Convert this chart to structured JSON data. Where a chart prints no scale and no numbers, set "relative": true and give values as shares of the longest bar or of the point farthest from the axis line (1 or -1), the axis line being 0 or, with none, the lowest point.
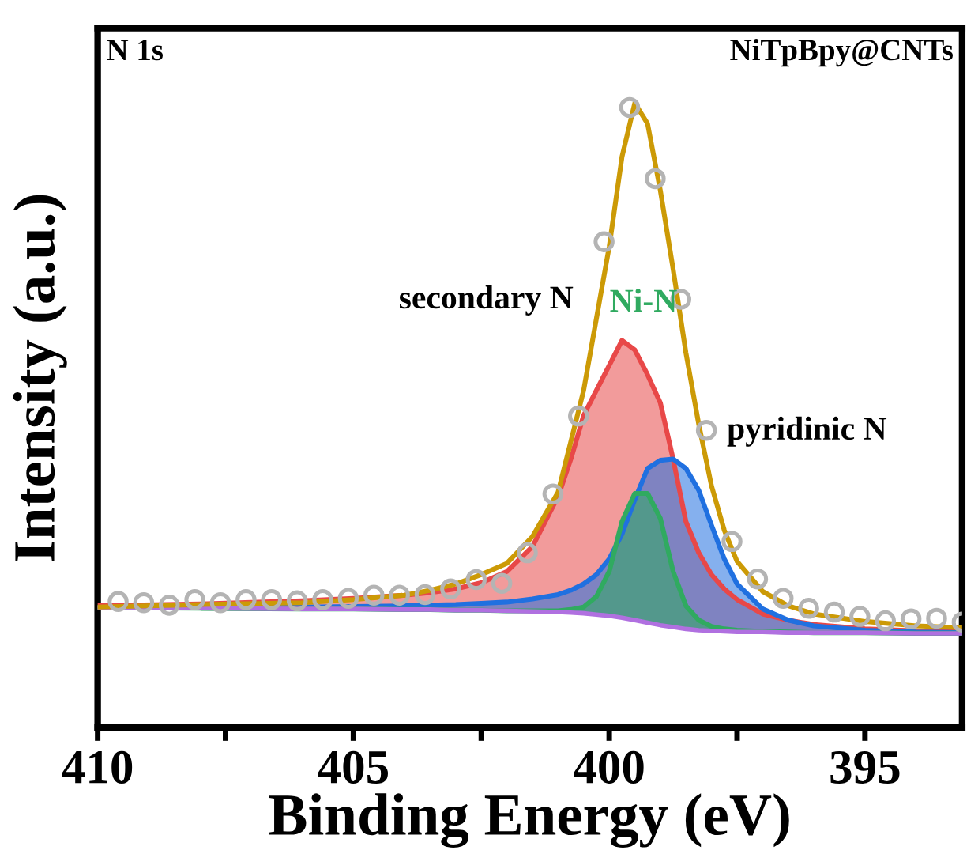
{
  "chart_data": {
    "type": "line",
    "relative": true,
    "xlabel": "Binding Energy (eV)",
    "ylabel": "Intensity (a.u.)",
    "annotations": [
      "N 1s",
      "NiTpBpy@CNTs"
    ],
    "xlim": [
      410,
      393.1
    ],
    "xticks": [
      410,
      {
        "value": 407.5,
        "label": null
      },
      405,
      {
        "value": 402.5,
        "label": null
      },
      400,
      {
        "value": 397.5,
        "label": null
      },
      395
    ],
    "grid": false,
    "legend": false,
    "x": [
      410,
      408,
      406,
      405,
      404,
      403.5,
      403,
      402.5,
      402,
      401.5,
      401,
      400.75,
      400.5,
      400.25,
      400,
      399.75,
      399.5,
      399.25,
      399,
      398.75,
      398.5,
      398.25,
      398,
      397.75,
      397.5,
      397,
      396.5,
      396,
      395,
      394,
      393.1
    ],
    "series": [
      {
        "type": "scatter",
        "marker": "circle",
        "color": "#b4b4b4",
        "x": [
          409.6,
          409.1,
          408.6,
          408.1,
          407.6,
          407.1,
          406.6,
          406.1,
          405.6,
          405.1,
          404.6,
          404.1,
          403.6,
          403.1,
          402.6,
          402.1,
          401.6,
          401.1,
          400.6,
          400.1,
          399.6,
          399.1,
          398.6,
          398.1,
          397.6,
          397.1,
          396.6,
          396.1,
          395.6,
          395.1,
          394.6,
          394.1,
          393.6,
          393.1
        ],
        "values": [
          0.202,
          0.2,
          0.196,
          0.205,
          0.2,
          0.205,
          0.205,
          0.203,
          0.205,
          0.207,
          0.212,
          0.212,
          0.213,
          0.222,
          0.237,
          0.231,
          0.28,
          0.374,
          0.499,
          0.778,
          0.993,
          0.879,
          0.686,
          0.476,
          0.298,
          0.238,
          0.207,
          0.191,
          0.185,
          0.178,
          0.171,
          0.174,
          0.175,
          0.169
        ]
      },
      {
        "color": "#b070e0",
        "values": [
          0.192,
          0.191,
          0.19,
          0.19,
          0.189,
          0.189,
          0.188,
          0.188,
          0.187,
          0.186,
          0.185,
          0.184,
          0.183,
          0.181,
          0.179,
          0.176,
          0.172,
          0.168,
          0.164,
          0.161,
          0.158,
          0.156,
          0.155,
          0.154,
          0.153,
          0.153,
          0.152,
          0.152,
          0.152,
          0.151,
          0.151
        ]
      },
      {
        "type": "area",
        "name": "secondary N",
        "color": "#e84848",
        "values": [
          0.195,
          0.198,
          0.203,
          0.207,
          0.212,
          0.216,
          0.222,
          0.232,
          0.25,
          0.29,
          0.37,
          0.43,
          0.5,
          0.54,
          0.58,
          0.62,
          0.605,
          0.565,
          0.52,
          0.43,
          0.33,
          0.28,
          0.245,
          0.222,
          0.205,
          0.182,
          0.172,
          0.165,
          0.158,
          0.155,
          0.153
        ]
      },
      {
        "type": "area",
        "name": "pyridinic N",
        "color": "#2070e0",
        "values": [
          0.192,
          0.192,
          0.193,
          0.194,
          0.195,
          0.196,
          0.197,
          0.199,
          0.201,
          0.206,
          0.213,
          0.22,
          0.23,
          0.245,
          0.27,
          0.31,
          0.365,
          0.415,
          0.428,
          0.43,
          0.415,
          0.38,
          0.324,
          0.27,
          0.23,
          0.19,
          0.172,
          0.163,
          0.156,
          0.153,
          0.152
        ]
      },
      {
        "type": "area",
        "name": "Ni-N",
        "color": "#30aa60",
        "values": [
          0.192,
          0.191,
          0.19,
          0.19,
          0.189,
          0.189,
          0.188,
          0.188,
          0.187,
          0.187,
          0.187,
          0.189,
          0.193,
          0.21,
          0.25,
          0.33,
          0.375,
          0.375,
          0.335,
          0.25,
          0.195,
          0.172,
          0.162,
          0.158,
          0.156,
          0.154,
          0.153,
          0.152,
          0.152,
          0.151,
          0.151
        ]
      },
      {
        "color": "#cc9a06",
        "values": [
          0.193,
          0.197,
          0.2,
          0.205,
          0.212,
          0.22,
          0.23,
          0.245,
          0.263,
          0.306,
          0.377,
          0.458,
          0.54,
          0.655,
          0.77,
          0.914,
          1.0,
          0.967,
          0.86,
          0.734,
          0.6,
          0.486,
          0.387,
          0.316,
          0.266,
          0.218,
          0.195,
          0.182,
          0.17,
          0.163,
          0.16
        ]
      }
    ]
  }
}
